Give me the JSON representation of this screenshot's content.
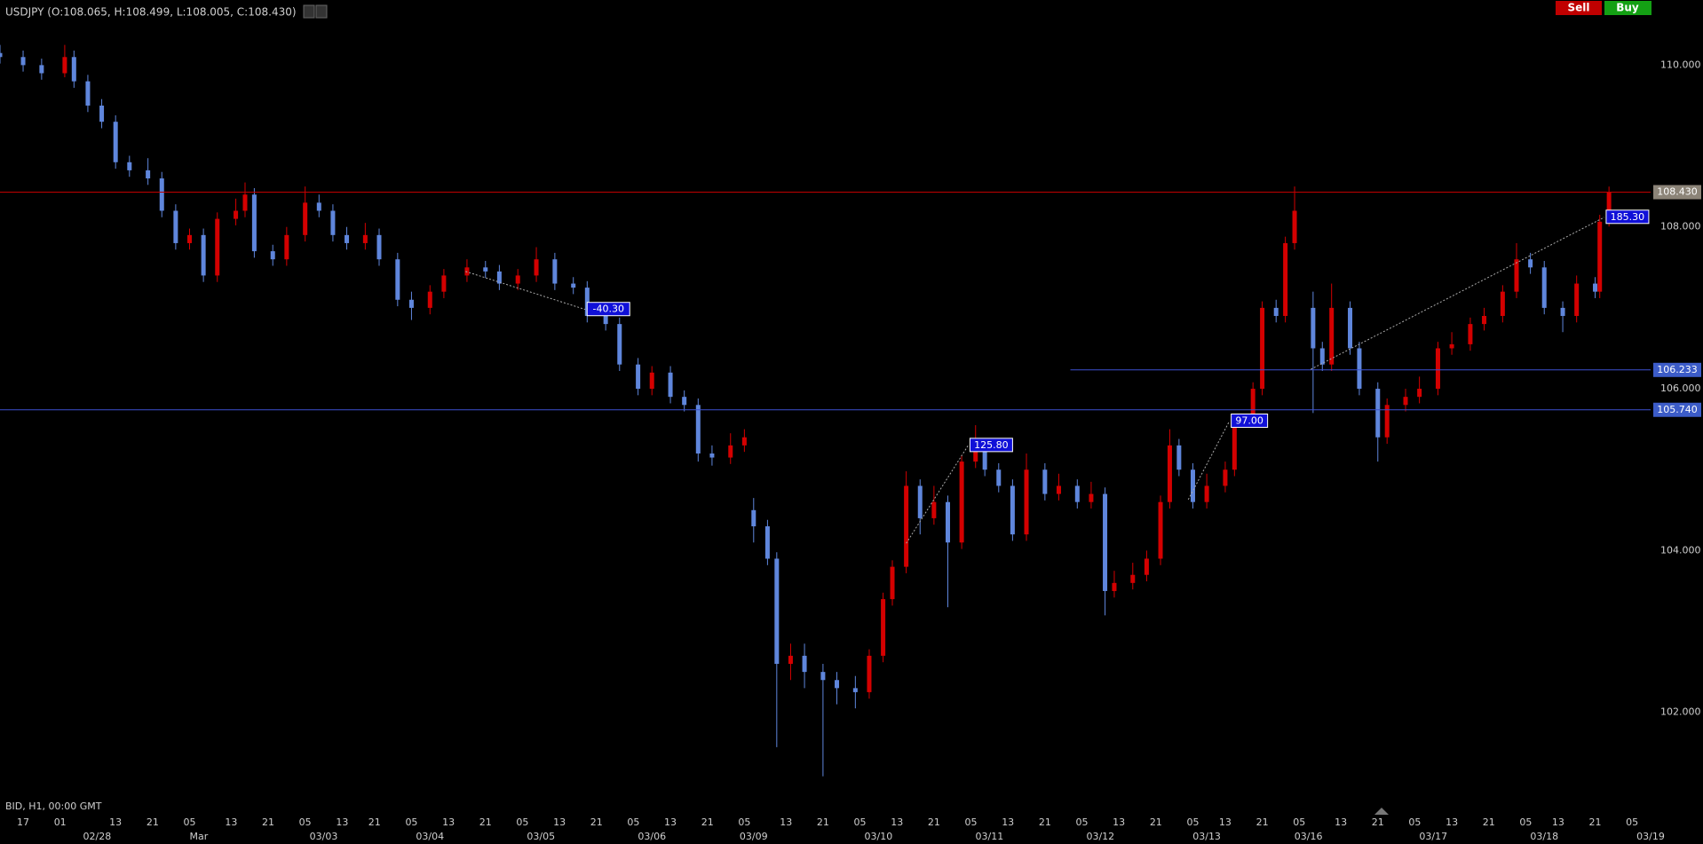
{
  "header": {
    "symbol_info": "USDJPY (O:108.065, H:108.499, L:108.005, C:108.430)",
    "sell": "Sell",
    "buy": "Buy",
    "status": "BID, H1, 00:00 GMT"
  },
  "chart_data": {
    "type": "candlestick",
    "up_color": "#d40000",
    "down_color": "#5f86dc",
    "x": [
      0,
      5,
      9,
      14,
      16,
      19,
      22,
      25,
      28,
      32,
      35,
      38,
      41,
      44,
      47,
      51,
      53,
      55,
      59,
      62,
      66,
      69,
      72,
      75,
      79,
      82,
      86,
      89,
      93,
      96,
      101,
      105,
      108,
      112,
      116,
      120,
      124,
      127,
      131,
      134,
      138,
      141,
      145,
      148,
      151,
      154,
      158,
      161,
      163,
      166,
      168,
      171,
      174,
      178,
      181,
      185,
      188,
      191,
      193,
      196,
      199,
      202,
      205,
      208,
      211,
      213,
      216,
      219,
      222,
      226,
      229,
      233,
      236,
      239,
      241,
      245,
      248,
      251,
      253,
      255,
      258,
      261,
      265,
      267,
      271,
      273,
      276,
      278,
      280,
      284,
      286,
      288,
      292,
      294,
      298,
      300,
      304,
      307,
      311,
      314,
      318,
      321,
      325,
      328,
      331,
      334,
      338,
      341,
      345,
      346,
      348
    ],
    "open": [
      110.15,
      110.1,
      110.0,
      109.9,
      110.1,
      109.8,
      109.5,
      109.3,
      108.8,
      108.7,
      108.6,
      108.2,
      107.8,
      107.9,
      107.4,
      108.1,
      108.2,
      108.4,
      107.7,
      107.6,
      107.9,
      108.3,
      108.2,
      107.9,
      107.8,
      107.9,
      107.6,
      107.1,
      107.0,
      107.2,
      107.4,
      107.5,
      107.45,
      107.3,
      107.4,
      107.6,
      107.3,
      107.25,
      106.9,
      106.8,
      106.3,
      106.0,
      106.2,
      105.9,
      105.8,
      105.2,
      105.15,
      105.3,
      104.5,
      104.3,
      103.9,
      102.6,
      102.7,
      102.5,
      102.4,
      102.3,
      102.25,
      102.7,
      103.4,
      103.8,
      104.8,
      104.4,
      104.6,
      104.1,
      105.1,
      105.3,
      105.0,
      104.8,
      104.2,
      105.0,
      104.7,
      104.8,
      104.6,
      104.7,
      103.5,
      103.6,
      103.7,
      103.9,
      104.6,
      105.3,
      105.0,
      104.6,
      104.8,
      105.0,
      105.6,
      106.0,
      107.0,
      106.9,
      107.8,
      107.0,
      106.5,
      106.3,
      107.0,
      106.5,
      106.0,
      105.4,
      105.8,
      105.9,
      106.0,
      106.5,
      106.55,
      106.8,
      106.9,
      107.2,
      107.6,
      107.5,
      107.0,
      106.9,
      107.3,
      107.2,
      108.065
    ],
    "high": [
      110.25,
      110.18,
      110.08,
      110.25,
      110.18,
      109.88,
      109.58,
      109.38,
      108.88,
      108.85,
      108.68,
      108.28,
      107.98,
      107.98,
      108.18,
      108.35,
      108.55,
      108.48,
      107.78,
      108.0,
      108.5,
      108.4,
      108.28,
      108.0,
      108.05,
      107.98,
      107.68,
      107.2,
      107.28,
      107.48,
      107.6,
      107.58,
      107.53,
      107.48,
      107.75,
      107.68,
      107.38,
      107.33,
      106.98,
      106.88,
      106.38,
      106.28,
      106.28,
      105.98,
      105.88,
      105.3,
      105.45,
      105.5,
      104.65,
      104.38,
      103.98,
      102.85,
      102.85,
      102.6,
      102.5,
      102.45,
      102.78,
      103.48,
      103.88,
      104.98,
      104.88,
      104.8,
      104.68,
      105.18,
      105.55,
      105.38,
      105.08,
      104.88,
      105.2,
      105.08,
      104.95,
      104.88,
      104.85,
      104.78,
      103.75,
      103.85,
      104.0,
      104.68,
      105.5,
      105.38,
      105.08,
      104.95,
      105.1,
      105.68,
      106.08,
      107.08,
      107.1,
      107.88,
      108.5,
      107.2,
      106.58,
      107.3,
      107.08,
      106.58,
      106.08,
      105.88,
      106.0,
      106.15,
      106.58,
      106.7,
      106.88,
      107.0,
      107.28,
      107.8,
      107.68,
      107.58,
      107.08,
      107.4,
      107.38,
      108.15,
      108.499
    ],
    "low": [
      110.02,
      109.92,
      109.82,
      109.85,
      109.72,
      109.42,
      109.22,
      108.72,
      108.62,
      108.52,
      108.12,
      107.72,
      107.72,
      107.32,
      107.32,
      108.02,
      108.12,
      107.62,
      107.52,
      107.52,
      107.82,
      108.12,
      107.82,
      107.72,
      107.72,
      107.52,
      107.02,
      106.85,
      106.92,
      107.12,
      107.32,
      107.37,
      107.22,
      107.22,
      107.32,
      107.22,
      107.17,
      106.82,
      106.72,
      106.22,
      105.92,
      105.92,
      105.82,
      105.72,
      105.1,
      105.05,
      105.07,
      105.22,
      104.1,
      103.82,
      101.57,
      102.4,
      102.3,
      101.21,
      102.1,
      102.05,
      102.17,
      102.62,
      103.32,
      103.72,
      104.2,
      104.32,
      103.3,
      104.02,
      105.02,
      104.92,
      104.72,
      104.12,
      104.12,
      104.62,
      104.62,
      104.52,
      104.52,
      103.2,
      103.42,
      103.52,
      103.62,
      103.82,
      104.52,
      104.92,
      104.52,
      104.52,
      104.72,
      104.92,
      105.52,
      105.92,
      106.82,
      106.82,
      107.72,
      105.7,
      106.22,
      106.22,
      106.42,
      105.92,
      105.1,
      105.32,
      105.72,
      105.82,
      105.92,
      106.42,
      106.47,
      106.72,
      106.82,
      107.12,
      107.42,
      106.92,
      106.7,
      106.82,
      107.12,
      107.12,
      108.005
    ],
    "close": [
      110.1,
      110.0,
      109.9,
      110.1,
      109.8,
      109.5,
      109.3,
      108.8,
      108.7,
      108.6,
      108.2,
      107.8,
      107.9,
      107.4,
      108.1,
      108.2,
      108.4,
      107.7,
      107.6,
      107.9,
      108.3,
      108.2,
      107.9,
      107.8,
      107.9,
      107.6,
      107.1,
      107.0,
      107.2,
      107.4,
      107.5,
      107.45,
      107.3,
      107.4,
      107.6,
      107.3,
      107.25,
      106.9,
      106.8,
      106.3,
      106.0,
      106.2,
      105.9,
      105.8,
      105.2,
      105.15,
      105.3,
      105.4,
      104.3,
      103.9,
      102.6,
      102.7,
      102.5,
      102.4,
      102.3,
      102.25,
      102.7,
      103.4,
      103.8,
      104.8,
      104.4,
      104.6,
      104.1,
      105.1,
      105.3,
      105.0,
      104.8,
      104.2,
      105.0,
      104.7,
      104.8,
      104.6,
      104.7,
      103.5,
      103.6,
      103.7,
      103.9,
      104.6,
      105.3,
      105.0,
      104.6,
      104.8,
      105.0,
      105.6,
      106.0,
      107.0,
      106.9,
      107.8,
      108.2,
      106.5,
      106.3,
      107.0,
      106.5,
      106.0,
      105.4,
      105.8,
      105.9,
      106.0,
      106.5,
      106.55,
      106.8,
      106.9,
      107.2,
      107.6,
      107.5,
      107.0,
      106.9,
      107.3,
      107.2,
      108.065,
      108.43
    ],
    "xlim": [
      0,
      357
    ],
    "ylim": [
      100.9,
      110.805
    ],
    "yticks": [
      {
        "value": 110,
        "label": "110.000"
      },
      {
        "value": 108,
        "label": "108.000"
      },
      {
        "value": 106,
        "label": "106.000"
      },
      {
        "value": 104,
        "label": "104.000"
      },
      {
        "value": 102,
        "label": "102.000"
      }
    ],
    "xticks": [
      {
        "value": 5,
        "label": "17"
      },
      {
        "value": 13,
        "label": "01"
      },
      {
        "value": 25,
        "label": "13"
      },
      {
        "value": 33,
        "label": "21"
      },
      {
        "value": 41,
        "label": "05"
      },
      {
        "value": 50,
        "label": "13"
      },
      {
        "value": 58,
        "label": "21"
      },
      {
        "value": 66,
        "label": "05"
      },
      {
        "value": 74,
        "label": "13"
      },
      {
        "value": 81,
        "label": "21"
      },
      {
        "value": 89,
        "label": "05"
      },
      {
        "value": 97,
        "label": "13"
      },
      {
        "value": 105,
        "label": "21"
      },
      {
        "value": 113,
        "label": "05"
      },
      {
        "value": 121,
        "label": "13"
      },
      {
        "value": 129,
        "label": "21"
      },
      {
        "value": 137,
        "label": "05"
      },
      {
        "value": 145,
        "label": "13"
      },
      {
        "value": 153,
        "label": "21"
      },
      {
        "value": 161,
        "label": "05"
      },
      {
        "value": 170,
        "label": "13"
      },
      {
        "value": 178,
        "label": "21"
      },
      {
        "value": 186,
        "label": "05"
      },
      {
        "value": 194,
        "label": "13"
      },
      {
        "value": 202,
        "label": "21"
      },
      {
        "value": 210,
        "label": "05"
      },
      {
        "value": 218,
        "label": "13"
      },
      {
        "value": 226,
        "label": "21"
      },
      {
        "value": 234,
        "label": "05"
      },
      {
        "value": 242,
        "label": "13"
      },
      {
        "value": 250,
        "label": "21"
      },
      {
        "value": 258,
        "label": "05"
      },
      {
        "value": 265,
        "label": "13"
      },
      {
        "value": 273,
        "label": "21"
      },
      {
        "value": 281,
        "label": "05"
      },
      {
        "value": 290,
        "label": "13"
      },
      {
        "value": 298,
        "label": "21"
      },
      {
        "value": 306,
        "label": "05"
      },
      {
        "value": 314,
        "label": "13"
      },
      {
        "value": 322,
        "label": "21"
      },
      {
        "value": 330,
        "label": "05"
      },
      {
        "value": 337,
        "label": "13"
      },
      {
        "value": 345,
        "label": "21"
      },
      {
        "value": 353,
        "label": "05"
      }
    ],
    "date_labels": [
      {
        "value": 21,
        "label": "02/28"
      },
      {
        "value": 43,
        "label": "Mar"
      },
      {
        "value": 70,
        "label": "03/03"
      },
      {
        "value": 93,
        "label": "03/04"
      },
      {
        "value": 117,
        "label": "03/05"
      },
      {
        "value": 141,
        "label": "03/06"
      },
      {
        "value": 163,
        "label": "03/09"
      },
      {
        "value": 190,
        "label": "03/10"
      },
      {
        "value": 214,
        "label": "03/11"
      },
      {
        "value": 238,
        "label": "03/12"
      },
      {
        "value": 261,
        "label": "03/13"
      },
      {
        "value": 283,
        "label": "03/16"
      },
      {
        "value": 310,
        "label": "03/17"
      },
      {
        "value": 334,
        "label": "03/18"
      },
      {
        "value": 357,
        "label": "03/19"
      }
    ],
    "hlines": [
      {
        "value": 108.43,
        "label": "108.430",
        "color": "#c00000",
        "label_color": "#8c8478"
      },
      {
        "value": 106.233,
        "label": "106.233",
        "color": "#3c50d0",
        "label_color": "#3c5cc8",
        "start": 231.5
      },
      {
        "value": 105.74,
        "label": "105.740",
        "color": "#3c50d0",
        "label_color": "#3c5cc8"
      }
    ],
    "trendlines": [
      {
        "from": [
          100.7,
          107.45
        ],
        "to": [
          126.6,
          106.98
        ],
        "label": "-40.30"
      },
      {
        "from": [
          196,
          104.09
        ],
        "to": [
          209.4,
          105.3
        ],
        "label": "125.80"
      },
      {
        "from": [
          257,
          104.63
        ],
        "to": [
          265.9,
          105.6
        ],
        "label": "97.00"
      },
      {
        "from": [
          283.5,
          106.24
        ],
        "to": [
          347,
          108.12
        ],
        "label": "185.30"
      }
    ]
  }
}
